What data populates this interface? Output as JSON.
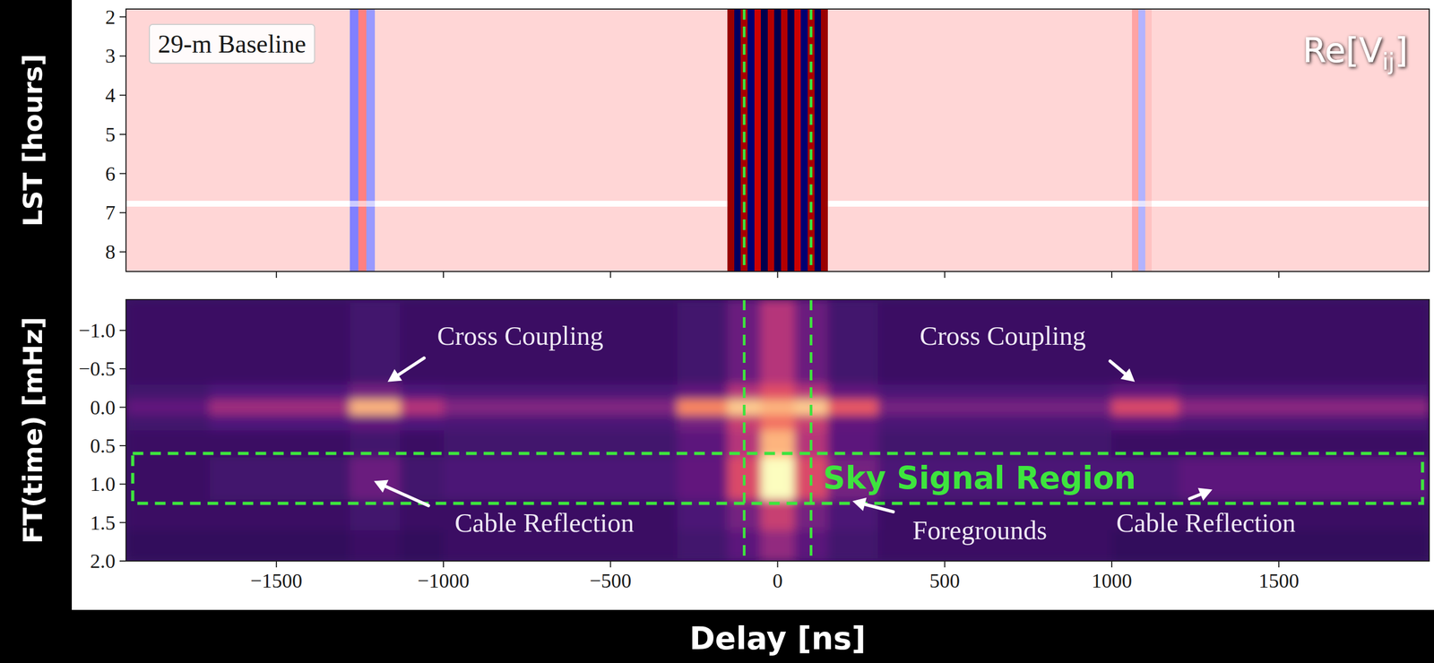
{
  "chart_data": [
    {
      "type": "heatmap",
      "color": "seismic",
      "color_range": [
        -1,
        1
      ],
      "ylabel": "LST [hours]",
      "inset_label": "29-m Baseline",
      "corner_label": [
        "Re[V",
        "ij",
        "]"
      ],
      "xlim": [
        -1950,
        1950
      ],
      "ylim": [
        8.5,
        1.8
      ],
      "xticks": [
        -1500,
        -1000,
        -500,
        0,
        500,
        1000,
        1500
      ],
      "yticks": [
        2,
        3,
        4,
        5,
        6,
        7,
        8
      ],
      "tick_labels": "y",
      "x_edges": [
        -1950,
        -1280,
        -1255,
        -1230,
        -1205,
        -150,
        -130,
        -110,
        -90,
        -70,
        -50,
        -30,
        -10,
        10,
        30,
        50,
        70,
        90,
        110,
        130,
        150,
        1060,
        1080,
        1100,
        1120,
        1950
      ],
      "y_edges": [
        1.8,
        6.7,
        6.85,
        8.5
      ],
      "values": [
        [
          0.08,
          -0.25,
          0.25,
          -0.2,
          0.08,
          0.9,
          -0.95,
          0.85,
          -0.9,
          0.7,
          -1,
          0.8,
          -1,
          0.8,
          -1,
          0.7,
          -0.9,
          0.85,
          -0.95,
          0.9,
          0.08,
          0.18,
          -0.15,
          0.12,
          0.08
        ],
        [
          0,
          -0.1,
          0.1,
          -0.08,
          0,
          0.9,
          -0.95,
          0.85,
          -0.9,
          0.7,
          -1,
          0.8,
          -1,
          0.8,
          -1,
          0.7,
          -0.9,
          0.85,
          -0.95,
          0.9,
          0,
          0.05,
          -0.05,
          0.05,
          0
        ],
        [
          0.08,
          -0.25,
          0.25,
          -0.2,
          0.08,
          0.9,
          -0.95,
          0.85,
          -0.9,
          0.7,
          -1,
          0.8,
          -1,
          0.8,
          -1,
          0.7,
          -0.9,
          0.85,
          -0.95,
          0.9,
          0.08,
          0.18,
          -0.15,
          0.12,
          0.08
        ]
      ],
      "vlines": {
        "values": [
          -100,
          100
        ],
        "color": "#3ee43e",
        "line_style": "dashed"
      }
    },
    {
      "type": "heatmap",
      "color": "magma",
      "color_range": [
        0,
        1
      ],
      "xlabel": "Delay [ns]",
      "ylabel": "FT(time) [mHz]",
      "xlim": [
        -1950,
        1950
      ],
      "ylim": [
        2.0,
        -1.4
      ],
      "xticks": [
        {
          "value": -1500,
          "label": "−1500"
        },
        {
          "value": -1000,
          "label": "−1000"
        },
        {
          "value": -500,
          "label": "−500"
        },
        0,
        500,
        1000,
        1500
      ],
      "yticks": [
        {
          "value": -1,
          "label": "−1.0"
        },
        {
          "value": -0.5,
          "label": "−0.5"
        },
        {
          "value": 0,
          "label": "0.0"
        },
        0.5,
        {
          "value": 1,
          "label": "1.0"
        },
        1.5,
        {
          "value": 2,
          "label": "2.0"
        }
      ],
      "x_edges": [
        -1950,
        -1700,
        -1280,
        -1130,
        -1000,
        -300,
        -150,
        -50,
        50,
        150,
        300,
        1000,
        1200,
        1950
      ],
      "y_edges": [
        -1.4,
        -0.3,
        -0.1,
        0.1,
        0.3,
        0.65,
        1.2,
        1.6,
        2.0
      ],
      "values": [
        [
          0.2,
          0.2,
          0.22,
          0.2,
          0.2,
          0.22,
          0.32,
          0.5,
          0.32,
          0.22,
          0.2,
          0.2,
          0.2
        ],
        [
          0.22,
          0.25,
          0.35,
          0.25,
          0.24,
          0.3,
          0.5,
          0.62,
          0.5,
          0.3,
          0.24,
          0.3,
          0.24
        ],
        [
          0.3,
          0.45,
          0.85,
          0.5,
          0.38,
          0.75,
          0.9,
          0.85,
          0.9,
          0.65,
          0.35,
          0.6,
          0.4
        ],
        [
          0.22,
          0.25,
          0.3,
          0.25,
          0.24,
          0.35,
          0.55,
          0.7,
          0.55,
          0.3,
          0.24,
          0.28,
          0.24
        ],
        [
          0.2,
          0.2,
          0.22,
          0.2,
          0.22,
          0.28,
          0.5,
          0.85,
          0.5,
          0.28,
          0.22,
          0.2,
          0.2
        ],
        [
          0.2,
          0.22,
          0.32,
          0.22,
          0.24,
          0.3,
          0.6,
          1.0,
          0.6,
          0.35,
          0.24,
          0.24,
          0.28
        ],
        [
          0.2,
          0.2,
          0.22,
          0.2,
          0.2,
          0.24,
          0.35,
          0.55,
          0.35,
          0.24,
          0.2,
          0.2,
          0.2
        ],
        [
          0.18,
          0.18,
          0.2,
          0.18,
          0.2,
          0.22,
          0.28,
          0.42,
          0.28,
          0.22,
          0.2,
          0.18,
          0.18
        ]
      ],
      "vlines": {
        "values": [
          -100,
          100
        ],
        "color": "#3ee43e",
        "line_style": "dashed"
      },
      "region": {
        "label": "Sky Signal Region",
        "xlim": [
          -1930,
          1930
        ],
        "ylim": [
          0.6,
          1.25
        ],
        "color": "#3ee43e",
        "line_style": "dashed"
      },
      "annotations": [
        {
          "text": "Cross Coupling",
          "x": -770,
          "y": -0.93,
          "arrow_x": [
            -1058,
            -1167
          ],
          "arrow_y": [
            -0.64,
            -0.33
          ]
        },
        {
          "text": "Cross Coupling",
          "x": 674,
          "y": -0.93,
          "arrow_x": [
            995,
            1069
          ],
          "arrow_y": [
            -0.6,
            -0.33
          ]
        },
        {
          "text": "Cable Reflection",
          "x": -698,
          "y": 1.5,
          "arrow_x": [
            -1045,
            -1208
          ],
          "arrow_y": [
            1.28,
            0.96
          ]
        },
        {
          "text": "Foregrounds",
          "x": 605,
          "y": 1.6,
          "arrow_x": [
            346,
            224
          ],
          "arrow_y": [
            1.36,
            1.22
          ]
        },
        {
          "text": "Cable Reflection",
          "x": 1282,
          "y": 1.5,
          "arrow_x": [
            1233,
            1301
          ],
          "arrow_y": [
            1.19,
            1.07
          ]
        }
      ]
    }
  ]
}
